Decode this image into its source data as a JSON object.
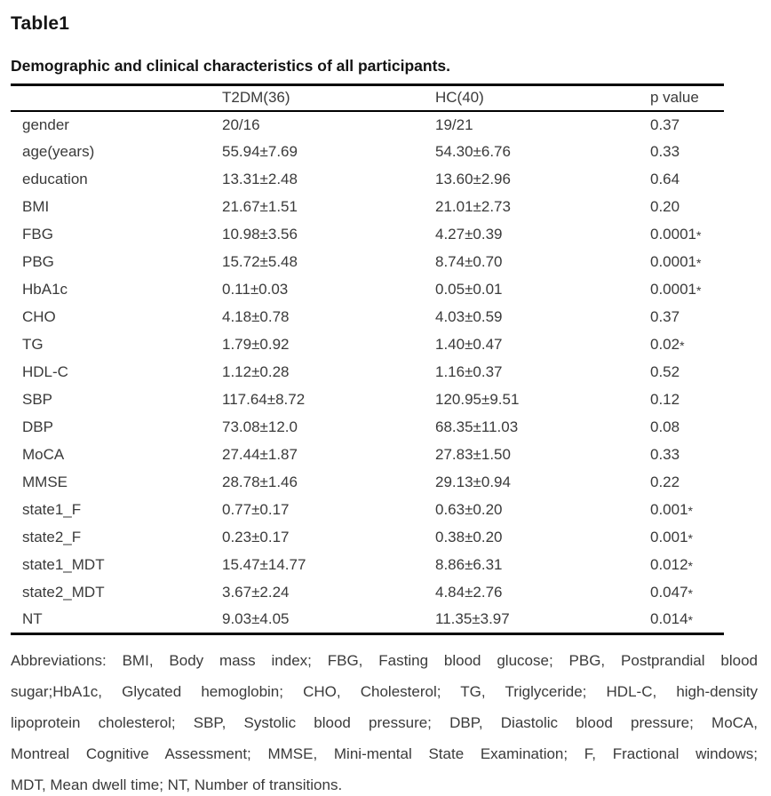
{
  "header": {
    "table_label": "Table1",
    "caption": "Demographic and clinical characteristics of all participants."
  },
  "table": {
    "columns": [
      "",
      "T2DM(36)",
      "HC(40)",
      "p value"
    ],
    "rows": [
      {
        "label": "gender",
        "t2dm": "20/16",
        "hc": "19/21",
        "p": "0.37",
        "sig": ""
      },
      {
        "label": "age(years)",
        "t2dm": "55.94±7.69",
        "hc": "54.30±6.76",
        "p": "0.33",
        "sig": ""
      },
      {
        "label": "education",
        "t2dm": "13.31±2.48",
        "hc": "13.60±2.96",
        "p": "0.64",
        "sig": ""
      },
      {
        "label": "BMI",
        "t2dm": "21.67±1.51",
        "hc": "21.01±2.73",
        "p": "0.20",
        "sig": ""
      },
      {
        "label": "FBG",
        "t2dm": "10.98±3.56",
        "hc": "4.27±0.39",
        "p": "0.0001",
        "sig": "*"
      },
      {
        "label": "PBG",
        "t2dm": "15.72±5.48",
        "hc": "8.74±0.70",
        "p": "0.0001",
        "sig": "*"
      },
      {
        "label": "HbA1c",
        "t2dm": "0.11±0.03",
        "hc": "0.05±0.01",
        "p": "0.0001",
        "sig": "*"
      },
      {
        "label": "CHO",
        "t2dm": "4.18±0.78",
        "hc": "4.03±0.59",
        "p": "0.37",
        "sig": ""
      },
      {
        "label": "TG",
        "t2dm": "1.79±0.92",
        "hc": "1.40±0.47",
        "p": "0.02",
        "sig": "*"
      },
      {
        "label": "HDL-C",
        "t2dm": "1.12±0.28",
        "hc": "1.16±0.37",
        "p": "0.52",
        "sig": ""
      },
      {
        "label": "SBP",
        "t2dm": "117.64±8.72",
        "hc": "120.95±9.51",
        "p": "0.12",
        "sig": ""
      },
      {
        "label": "DBP",
        "t2dm": "73.08±12.0",
        "hc": "68.35±11.03",
        "p": "0.08",
        "sig": ""
      },
      {
        "label": "MoCA",
        "t2dm": "27.44±1.87",
        "hc": "27.83±1.50",
        "p": "0.33",
        "sig": ""
      },
      {
        "label": "MMSE",
        "t2dm": "28.78±1.46",
        "hc": "29.13±0.94",
        "p": "0.22",
        "sig": ""
      },
      {
        "label": "state1_F",
        "t2dm": "0.77±0.17",
        "hc": "0.63±0.20",
        "p": "0.001",
        "sig": "*"
      },
      {
        "label": "state2_F",
        "t2dm": "0.23±0.17",
        "hc": "0.38±0.20",
        "p": "0.001",
        "sig": "*"
      },
      {
        "label": "state1_MDT",
        "t2dm": "15.47±14.77",
        "hc": "8.86±6.31",
        "p": "0.012",
        "sig": "*"
      },
      {
        "label": "state2_MDT",
        "t2dm": "3.67±2.24",
        "hc": "4.84±2.76",
        "p": "0.047",
        "sig": "*"
      },
      {
        "label": "NT",
        "t2dm": "9.03±4.05",
        "hc": "11.35±3.97",
        "p": "0.014",
        "sig": "*"
      }
    ]
  },
  "footnote": {
    "lines": [
      "Abbreviations: BMI, Body mass index; FBG, Fasting blood glucose; PBG, Postprandial blood",
      "sugar;HbA1c, Glycated hemoglobin; CHO, Cholesterol; TG, Triglyceride; HDL-C, high-density",
      "lipoprotein cholesterol; SBP, Systolic blood pressure; DBP, Diastolic blood pressure; MoCA,",
      "Montreal Cognitive Assessment; MMSE, Mini-mental State Examination; F, Fractional windows;",
      "MDT, Mean dwell time; NT, Number of transitions."
    ]
  }
}
